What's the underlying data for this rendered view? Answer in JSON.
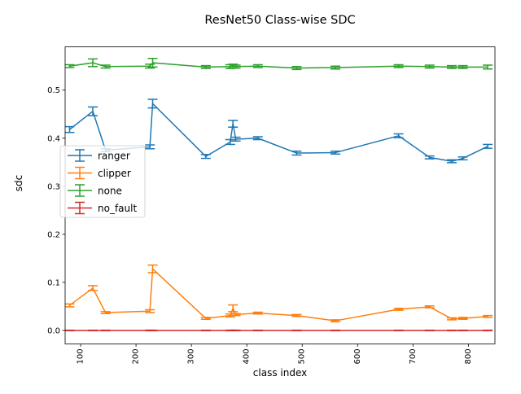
{
  "chart_data": {
    "type": "line",
    "title": "ResNet50 Class-wise SDC",
    "xlabel": "class index",
    "ylabel": "sdc",
    "xlim": [
      72,
      848
    ],
    "ylim": [
      -0.028,
      0.59
    ],
    "x_ticks": [
      100,
      200,
      300,
      400,
      500,
      600,
      700,
      800
    ],
    "x_tick_labels": [
      "100",
      "200",
      "300",
      "400",
      "500",
      "600",
      "700",
      "800"
    ],
    "x_tick_rotation": 90,
    "y_ticks": [
      0.0,
      0.1,
      0.2,
      0.3,
      0.4,
      0.5
    ],
    "y_tick_labels": [
      "0.0",
      "0.1",
      "0.2",
      "0.3",
      "0.4",
      "0.5"
    ],
    "grid": false,
    "legend_position": "center-left",
    "x": [
      80,
      122,
      145,
      225,
      230,
      326,
      370,
      375,
      380,
      420,
      490,
      560,
      674,
      730,
      770,
      790,
      835
    ],
    "series": [
      {
        "name": "ranger",
        "color": "#1f77b4",
        "values": [
          0.418,
          0.456,
          0.375,
          0.382,
          0.472,
          0.362,
          0.392,
          0.43,
          0.398,
          0.4,
          0.369,
          0.37,
          0.405,
          0.36,
          0.352,
          0.358,
          0.383
        ],
        "errors": [
          0.006,
          0.009,
          0.003,
          0.004,
          0.009,
          0.004,
          0.005,
          0.007,
          0.004,
          0.003,
          0.004,
          0.003,
          0.004,
          0.003,
          0.003,
          0.003,
          0.004
        ]
      },
      {
        "name": "clipper",
        "color": "#ff7f0e",
        "values": [
          0.052,
          0.088,
          0.037,
          0.04,
          0.128,
          0.025,
          0.031,
          0.046,
          0.033,
          0.036,
          0.031,
          0.02,
          0.044,
          0.049,
          0.024,
          0.025,
          0.029
        ],
        "errors": [
          0.003,
          0.005,
          0.002,
          0.003,
          0.008,
          0.002,
          0.003,
          0.007,
          0.002,
          0.002,
          0.002,
          0.002,
          0.002,
          0.002,
          0.002,
          0.002,
          0.002
        ]
      },
      {
        "name": "none",
        "color": "#2ca02c",
        "values": [
          0.55,
          0.557,
          0.549,
          0.55,
          0.557,
          0.548,
          0.549,
          0.55,
          0.549,
          0.55,
          0.546,
          0.547,
          0.55,
          0.549,
          0.548,
          0.548,
          0.548
        ],
        "errors": [
          0.003,
          0.008,
          0.003,
          0.004,
          0.009,
          0.003,
          0.004,
          0.004,
          0.003,
          0.003,
          0.003,
          0.003,
          0.003,
          0.003,
          0.003,
          0.003,
          0.004
        ]
      },
      {
        "name": "no_fault",
        "color": "#d62728",
        "values": [
          0.0,
          0.0,
          0.0,
          0.0,
          0.0,
          0.0,
          0.0,
          0.0,
          0.0,
          0.0,
          0.0,
          0.0,
          0.0,
          0.0,
          0.0,
          0.0,
          0.0
        ],
        "errors": [
          0.0005,
          0.0005,
          0.0005,
          0.0005,
          0.0005,
          0.0005,
          0.0005,
          0.0005,
          0.0005,
          0.0005,
          0.0005,
          0.0005,
          0.0005,
          0.0005,
          0.0005,
          0.0005,
          0.0005
        ]
      }
    ]
  }
}
